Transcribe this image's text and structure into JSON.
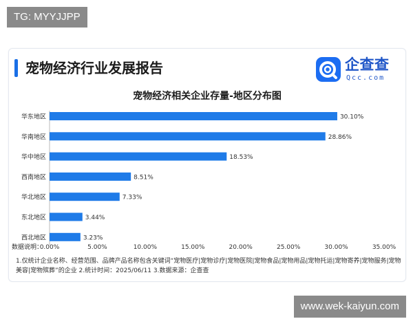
{
  "watermark_top": "TG: MYYJJPP",
  "watermark_bottom": "www.wek-kaiyun.com",
  "report_title": "宠物经济行业发展报告",
  "logo": {
    "name": "企查查",
    "sub": "Qcc.com"
  },
  "colors": {
    "bar": "#1f7be8",
    "accent": "#1a6fe6",
    "logo": "#1c6df2",
    "grid": "#e6e6e6"
  },
  "chart_data": {
    "type": "bar",
    "orientation": "horizontal",
    "title": "宠物经济相关企业存量-地区分布图",
    "categories": [
      "华东地区",
      "华南地区",
      "华中地区",
      "西南地区",
      "华北地区",
      "东北地区",
      "西北地区"
    ],
    "values": [
      30.1,
      28.86,
      18.53,
      8.51,
      7.33,
      3.44,
      3.23
    ],
    "value_labels": [
      "30.10%",
      "28.86%",
      "18.53%",
      "8.51%",
      "7.33%",
      "3.44%",
      "3.23%"
    ],
    "xlabel": "数据说明：",
    "xticks": [
      "0.00%",
      "5.00%",
      "10.00%",
      "15.00%",
      "20.00%",
      "25.00%",
      "30.00%",
      "35.00%"
    ],
    "xlim": [
      0,
      35
    ],
    "grid": true
  },
  "notes": "1.仅统计企业名称、经营范围、品牌产品名称包含关键词“宠物医疗|宠物诊疗|宠物医院|宠物食品|宠物用品|宠物托运|宠物寄养|宠物服务|宠物美容|宠物殡葬”的企业 2.统计时间：2025/06/11 3.数据来源：企查查"
}
